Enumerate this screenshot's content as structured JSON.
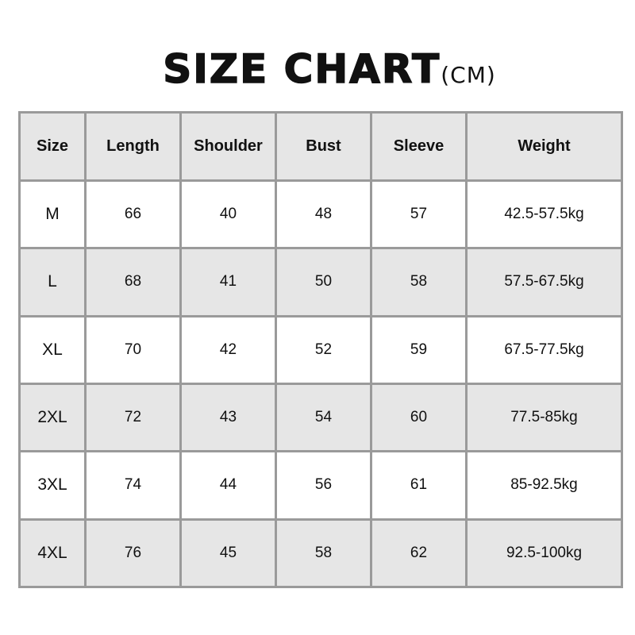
{
  "title": {
    "main": "SIZE CHART",
    "unit": "(CM)"
  },
  "chart_data": {
    "type": "table",
    "title": "SIZE CHART(CM)",
    "columns": [
      "Size",
      "Length",
      "Shoulder",
      "Bust",
      "Sleeve",
      "Weight"
    ],
    "rows": [
      [
        "M",
        "66",
        "40",
        "48",
        "57",
        "42.5-57.5kg"
      ],
      [
        "L",
        "68",
        "41",
        "50",
        "58",
        "57.5-67.5kg"
      ],
      [
        "XL",
        "70",
        "42",
        "52",
        "59",
        "67.5-77.5kg"
      ],
      [
        "2XL",
        "72",
        "43",
        "54",
        "60",
        "77.5-85kg"
      ],
      [
        "3XL",
        "74",
        "44",
        "56",
        "61",
        "85-92.5kg"
      ],
      [
        "4XL",
        "76",
        "45",
        "58",
        "62",
        "92.5-100kg"
      ]
    ],
    "colors": {
      "border": "#9a9a9a",
      "stripe": "#e6e6e6"
    }
  }
}
